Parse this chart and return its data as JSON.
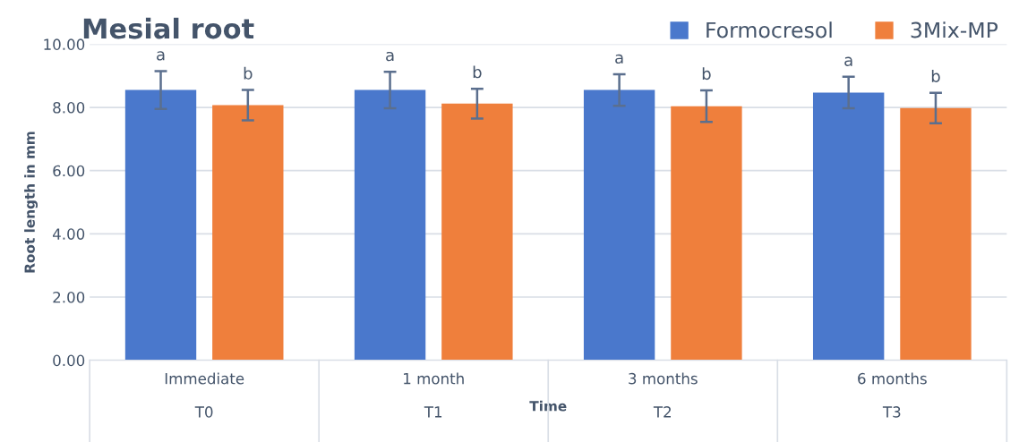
{
  "chart_data": {
    "type": "bar",
    "title": "Mesial root",
    "xlabel": "Time",
    "ylabel": "Root length in mm",
    "categories": [
      "Immediate\n\nT0",
      "1 month\n\nT1",
      "3 months\n\nT2",
      "6 months\n\nT3"
    ],
    "series": [
      {
        "name": "Formocresol",
        "color": "#4a78cc",
        "values": [
          8.55,
          8.55,
          8.55,
          8.47
        ],
        "errors": [
          0.6,
          0.58,
          0.5,
          0.5
        ],
        "value_labels": [
          "a",
          "a",
          "a",
          "a"
        ]
      },
      {
        "name": "3Mix-MP",
        "color": "#ef7f3c",
        "values": [
          8.07,
          8.12,
          8.04,
          7.98
        ],
        "errors": [
          0.48,
          0.47,
          0.5,
          0.48
        ],
        "value_labels": [
          "b",
          "b",
          "b",
          "b"
        ]
      }
    ],
    "ylim": [
      0,
      10
    ],
    "yticks": [
      {
        "value": 0,
        "label": "0.00"
      },
      {
        "value": 2,
        "label": "2.00"
      },
      {
        "value": 4,
        "label": "4.00"
      },
      {
        "value": 6,
        "label": "6.00"
      },
      {
        "value": 8,
        "label": "8.00"
      },
      {
        "value": 10,
        "label": "10.00"
      }
    ],
    "grid": "y",
    "legend": "top right"
  }
}
